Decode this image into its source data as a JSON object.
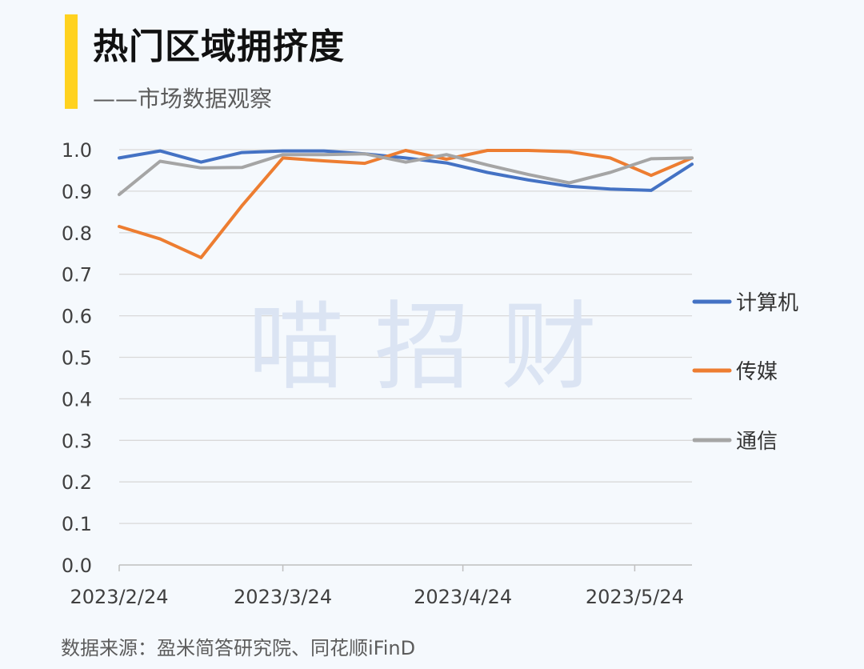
{
  "header": {
    "title": "热门区域拥挤度",
    "subtitle": "——市场数据观察"
  },
  "watermark": "喵 招 财",
  "footer": {
    "source": "数据来源：盈米简答研究院、同花顺iFinD"
  },
  "colors": {
    "accent": "#ffd21f",
    "grid": "#d9d9d9",
    "watermark": "#dbe4f3"
  },
  "chart_data": {
    "type": "line",
    "title": "",
    "xlabel": "",
    "ylabel": "",
    "ylim": [
      0,
      1.0
    ],
    "y_ticks": [
      "0.0",
      "0.1",
      "0.2",
      "0.3",
      "0.4",
      "0.5",
      "0.6",
      "0.7",
      "0.8",
      "0.9",
      "1.0"
    ],
    "x": [
      "2023/2/24",
      "2023/3/3",
      "2023/3/10",
      "2023/3/17",
      "2023/3/24",
      "2023/3/31",
      "2023/4/7",
      "2023/4/14",
      "2023/4/21",
      "2023/4/28",
      "2023/5/5",
      "2023/5/12",
      "2023/5/19",
      "2023/5/26",
      "2023/6/2"
    ],
    "x_tick_labels": [
      {
        "index": 0,
        "label": "2023/2/24"
      },
      {
        "index": 4,
        "label": "2023/3/24"
      },
      {
        "index": 8.4,
        "label": "2023/4/24"
      },
      {
        "index": 12.6,
        "label": "2023/5/24"
      }
    ],
    "grid": true,
    "legend_position": "right",
    "series": [
      {
        "name": "计算机",
        "color": "#4472c4",
        "values": [
          0.98,
          0.997,
          0.97,
          0.993,
          0.997,
          0.997,
          0.99,
          0.98,
          0.968,
          0.945,
          0.927,
          0.912,
          0.905,
          0.902,
          0.965
        ]
      },
      {
        "name": "传媒",
        "color": "#ed7d31",
        "values": [
          0.815,
          0.785,
          0.74,
          0.865,
          0.98,
          0.973,
          0.967,
          0.998,
          0.977,
          0.998,
          0.998,
          0.995,
          0.98,
          0.938,
          0.98
        ]
      },
      {
        "name": "通信",
        "color": "#a5a5a5",
        "values": [
          0.892,
          0.972,
          0.956,
          0.957,
          0.988,
          0.988,
          0.99,
          0.97,
          0.988,
          0.963,
          0.94,
          0.92,
          0.945,
          0.978,
          0.98
        ]
      }
    ]
  }
}
